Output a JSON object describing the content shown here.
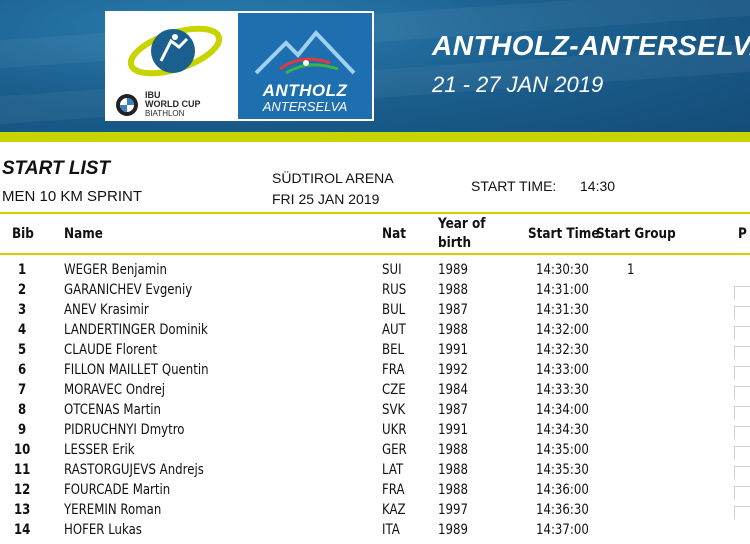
{
  "banner": {
    "event_title": "ANTHOLZ-ANTERSELVA",
    "event_dates": "21 - 27 JAN 2019",
    "ibu_logo_text": [
      "IBU",
      "WORLD CUP",
      "BIATHLON"
    ],
    "venue_logo_name": "ANTHOLZ",
    "venue_logo_sub": "ANTERSELVA",
    "colors": {
      "banner_blue": "#1b5f8f",
      "accent_lime": "#c8d400"
    }
  },
  "header": {
    "title": "START LIST",
    "event": "MEN 10 KM SPRINT",
    "venue": "SÜDTIROL ARENA",
    "date": "FRI 25 JAN 2019",
    "start_time_label": "START TIME:",
    "start_time_value": "14:30"
  },
  "table": {
    "columns": {
      "bib": "Bib",
      "name": "Name",
      "nat": "Nat",
      "year_line1": "Year of",
      "year_line2": "birth",
      "start_time": "Start Time",
      "start_group": "Start Group",
      "extra": "P"
    },
    "rows": [
      {
        "bib": "1",
        "name": "WEGER Benjamin",
        "nat": "SUI",
        "year": "1989",
        "time": "14:30:30",
        "group": "1"
      },
      {
        "bib": "2",
        "name": "GARANICHEV Evgeniy",
        "nat": "RUS",
        "year": "1988",
        "time": "14:31:00",
        "group": ""
      },
      {
        "bib": "3",
        "name": "ANEV Krasimir",
        "nat": "BUL",
        "year": "1987",
        "time": "14:31:30",
        "group": ""
      },
      {
        "bib": "4",
        "name": "LANDERTINGER Dominik",
        "nat": "AUT",
        "year": "1988",
        "time": "14:32:00",
        "group": ""
      },
      {
        "bib": "5",
        "name": "CLAUDE Florent",
        "nat": "BEL",
        "year": "1991",
        "time": "14:32:30",
        "group": ""
      },
      {
        "bib": "6",
        "name": "FILLON MAILLET Quentin",
        "nat": "FRA",
        "year": "1992",
        "time": "14:33:00",
        "group": ""
      },
      {
        "bib": "7",
        "name": "MORAVEC Ondrej",
        "nat": "CZE",
        "year": "1984",
        "time": "14:33:30",
        "group": ""
      },
      {
        "bib": "8",
        "name": "OTCENAS Martin",
        "nat": "SVK",
        "year": "1987",
        "time": "14:34:00",
        "group": ""
      },
      {
        "bib": "9",
        "name": "PIDRUCHNYI Dmytro",
        "nat": "UKR",
        "year": "1991",
        "time": "14:34:30",
        "group": ""
      },
      {
        "bib": "10",
        "name": "LESSER Erik",
        "nat": "GER",
        "year": "1988",
        "time": "14:35:00",
        "group": ""
      },
      {
        "bib": "11",
        "name": "RASTORGUJEVS Andrejs",
        "nat": "LAT",
        "year": "1988",
        "time": "14:35:30",
        "group": ""
      },
      {
        "bib": "12",
        "name": "FOURCADE Martin",
        "nat": "FRA",
        "year": "1988",
        "time": "14:36:00",
        "group": ""
      },
      {
        "bib": "13",
        "name": "YEREMIN Roman",
        "nat": "KAZ",
        "year": "1997",
        "time": "14:36:30",
        "group": ""
      },
      {
        "bib": "14",
        "name": "HOFER Lukas",
        "nat": "ITA",
        "year": "1989",
        "time": "14:37:00",
        "group": ""
      }
    ]
  }
}
